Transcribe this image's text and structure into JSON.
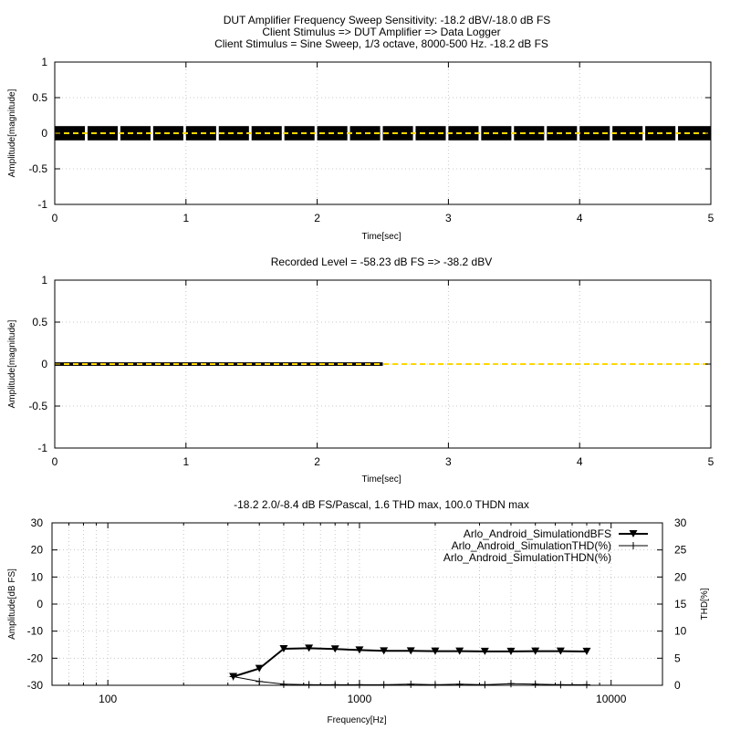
{
  "figure": {
    "title_lines": [
      "DUT Amplifier Frequency Sweep Sensitivity: -18.2 dBV/-18.0 dB FS",
      "Client Stimulus => DUT Amplifier => Data Logger",
      "Client Stimulus = Sine Sweep, 1/3 octave, 8000-500 Hz. -18.2 dB FS"
    ]
  },
  "colors": {
    "signal": "#000000",
    "trace": "#ffd700",
    "grid": "#c8c8c8"
  },
  "chart_data": [
    {
      "type": "line",
      "title": "",
      "xlabel": "Time[sec]",
      "ylabel": "Amplitude[magnitude]",
      "xlim": [
        0,
        5
      ],
      "ylim": [
        -1,
        1
      ],
      "xticks": [
        "0",
        "1",
        "2",
        "3",
        "4",
        "5"
      ],
      "yticks": [
        "1",
        "0.5",
        "0",
        "-0.5",
        "-1"
      ],
      "grid": true,
      "signal": {
        "description_value": "sine sweep bursts",
        "amplitude": 0.1,
        "bursts": [
          [
            0.0,
            0.23
          ],
          [
            0.25,
            0.48
          ],
          [
            0.5,
            0.73
          ],
          [
            0.75,
            0.98
          ],
          [
            1.0,
            1.23
          ],
          [
            1.25,
            1.48
          ],
          [
            1.5,
            1.73
          ],
          [
            1.75,
            1.98
          ],
          [
            2.0,
            2.23
          ],
          [
            2.25,
            2.48
          ],
          [
            2.5,
            2.73
          ],
          [
            2.75,
            2.98
          ],
          [
            3.0,
            3.23
          ],
          [
            3.25,
            3.48
          ],
          [
            3.5,
            3.73
          ],
          [
            3.75,
            3.98
          ],
          [
            4.0,
            4.23
          ],
          [
            4.25,
            4.48
          ],
          [
            4.5,
            4.73
          ],
          [
            4.75,
            5.0
          ]
        ]
      },
      "trace": {
        "x": [
          0,
          5
        ],
        "y": [
          0,
          0
        ]
      }
    },
    {
      "type": "line",
      "title": "Recorded Level = -58.23 dB FS  => -38.2 dBV",
      "xlabel": "Time[sec]",
      "ylabel": "Amplitude[magnitude]",
      "xlim": [
        0,
        5
      ],
      "ylim": [
        -1,
        1
      ],
      "xticks": [
        "0",
        "1",
        "2",
        "3",
        "4",
        "5"
      ],
      "yticks": [
        "1",
        "0.5",
        "0",
        "-0.5",
        "-1"
      ],
      "grid": true,
      "signal": {
        "amplitude": 0.01,
        "x_range": [
          0,
          2.5
        ]
      },
      "trace": {
        "x": [
          0,
          5
        ],
        "y": [
          0,
          0
        ]
      }
    },
    {
      "type": "line",
      "title": "-18.2 2.0/-8.4 dB FS/Pascal, 1.6 THD max, 100.0 THDN max",
      "xlabel": "Frequency[Hz]",
      "ylabel": "Amplitude[dB FS]",
      "y2label": "THD[%]",
      "xscale": "log",
      "xlim": [
        60,
        16000
      ],
      "ylim": [
        -30,
        30
      ],
      "y2lim": [
        0,
        30
      ],
      "xticks": [
        "100",
        "1000",
        "10000"
      ],
      "yticks": [
        "30",
        "20",
        "10",
        "0",
        "-10",
        "-20",
        "-30"
      ],
      "y2ticks": [
        "30",
        "25",
        "20",
        "15",
        "10",
        "5",
        "0"
      ],
      "grid": true,
      "legend_position": "top-right",
      "series": [
        {
          "name": "Arlo_Android_SimulationdBFS",
          "axis": "left",
          "marker": "triangle-down",
          "x": [
            315,
            400,
            500,
            630,
            800,
            1000,
            1250,
            1600,
            2000,
            2500,
            3150,
            4000,
            5000,
            6300,
            8000
          ],
          "y": [
            -26.8,
            -23.8,
            -16.5,
            -16.3,
            -16.6,
            -17.0,
            -17.3,
            -17.3,
            -17.4,
            -17.4,
            -17.5,
            -17.5,
            -17.4,
            -17.4,
            -17.5
          ]
        },
        {
          "name": "Arlo_Android_SimulationTHD(%)",
          "axis": "right",
          "marker": "plus",
          "x": [
            315,
            400,
            500,
            630,
            800,
            1000,
            1250,
            1600,
            2000,
            2500,
            3150,
            4000,
            5000,
            6300,
            8000
          ],
          "y": [
            1.6,
            0.7,
            0.2,
            0.1,
            0.1,
            0.1,
            0.1,
            0.2,
            0.1,
            0.2,
            0.1,
            0.3,
            0.2,
            0.1,
            0.1
          ]
        },
        {
          "name": "Arlo_Android_SimulationTHDN(%)",
          "axis": "right",
          "marker": "none",
          "x": [],
          "y": []
        }
      ]
    }
  ]
}
